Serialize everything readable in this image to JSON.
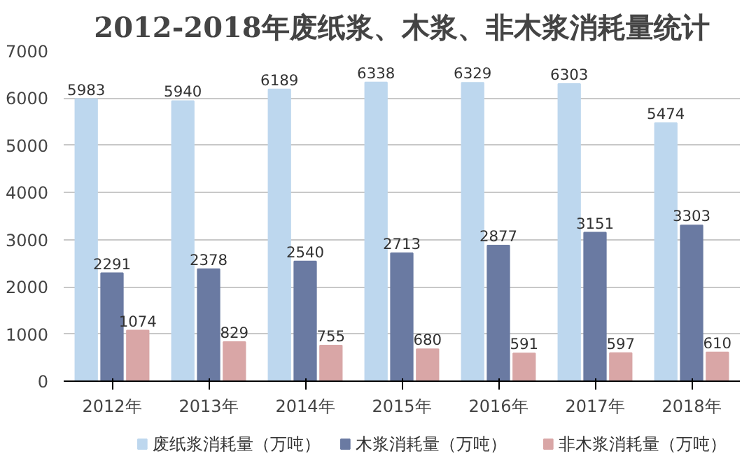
{
  "chart_data": {
    "type": "bar",
    "title": "2012-2018年废纸浆、木浆、非木浆消耗量统计",
    "categories": [
      "2012年",
      "2013年",
      "2014年",
      "2015年",
      "2016年",
      "2017年",
      "2018年"
    ],
    "series": [
      {
        "name": "废纸浆消耗量（万吨）",
        "color": "#bdd7ee",
        "values": [
          5983,
          5940,
          6189,
          6338,
          6329,
          6303,
          5474
        ]
      },
      {
        "name": "木浆消耗量（万吨）",
        "color": "#6a7aa2",
        "values": [
          2291,
          2378,
          2540,
          2713,
          2877,
          3151,
          3303
        ]
      },
      {
        "name": "非木浆消耗量（万吨）",
        "color": "#d9a6a6",
        "values": [
          1074,
          829,
          755,
          680,
          591,
          597,
          610
        ]
      }
    ],
    "ylim": [
      0,
      7000
    ],
    "yticks": [
      0,
      1000,
      2000,
      3000,
      4000,
      5000,
      6000,
      7000
    ],
    "grid": "y",
    "legend": "bottom",
    "data_labels": true
  }
}
